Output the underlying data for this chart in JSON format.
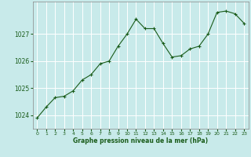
{
  "x": [
    0,
    1,
    2,
    3,
    4,
    5,
    6,
    7,
    8,
    9,
    10,
    11,
    12,
    13,
    14,
    15,
    16,
    17,
    18,
    19,
    20,
    21,
    22,
    23
  ],
  "y": [
    1023.9,
    1024.3,
    1024.65,
    1024.7,
    1024.9,
    1025.3,
    1025.5,
    1025.9,
    1026.0,
    1026.55,
    1027.0,
    1027.55,
    1027.2,
    1027.2,
    1026.65,
    1026.15,
    1026.2,
    1026.45,
    1026.55,
    1027.0,
    1027.8,
    1027.85,
    1027.75,
    1027.4
  ],
  "line_color": "#1a5c1a",
  "marker_color": "#1a5c1a",
  "bg_color": "#c8eaea",
  "grid_color": "#b0d8d8",
  "xlabel": "Graphe pression niveau de la mer (hPa)",
  "xlabel_color": "#1a5c1a",
  "tick_color": "#1a5c1a",
  "ylim": [
    1023.5,
    1028.2
  ],
  "yticks": [
    1024,
    1025,
    1026,
    1027
  ],
  "xticks": [
    0,
    1,
    2,
    3,
    4,
    5,
    6,
    7,
    8,
    9,
    10,
    11,
    12,
    13,
    14,
    15,
    16,
    17,
    18,
    19,
    20,
    21,
    22,
    23
  ],
  "spine_color": "#888888",
  "bottom_bar_color": "#2a6b2a"
}
